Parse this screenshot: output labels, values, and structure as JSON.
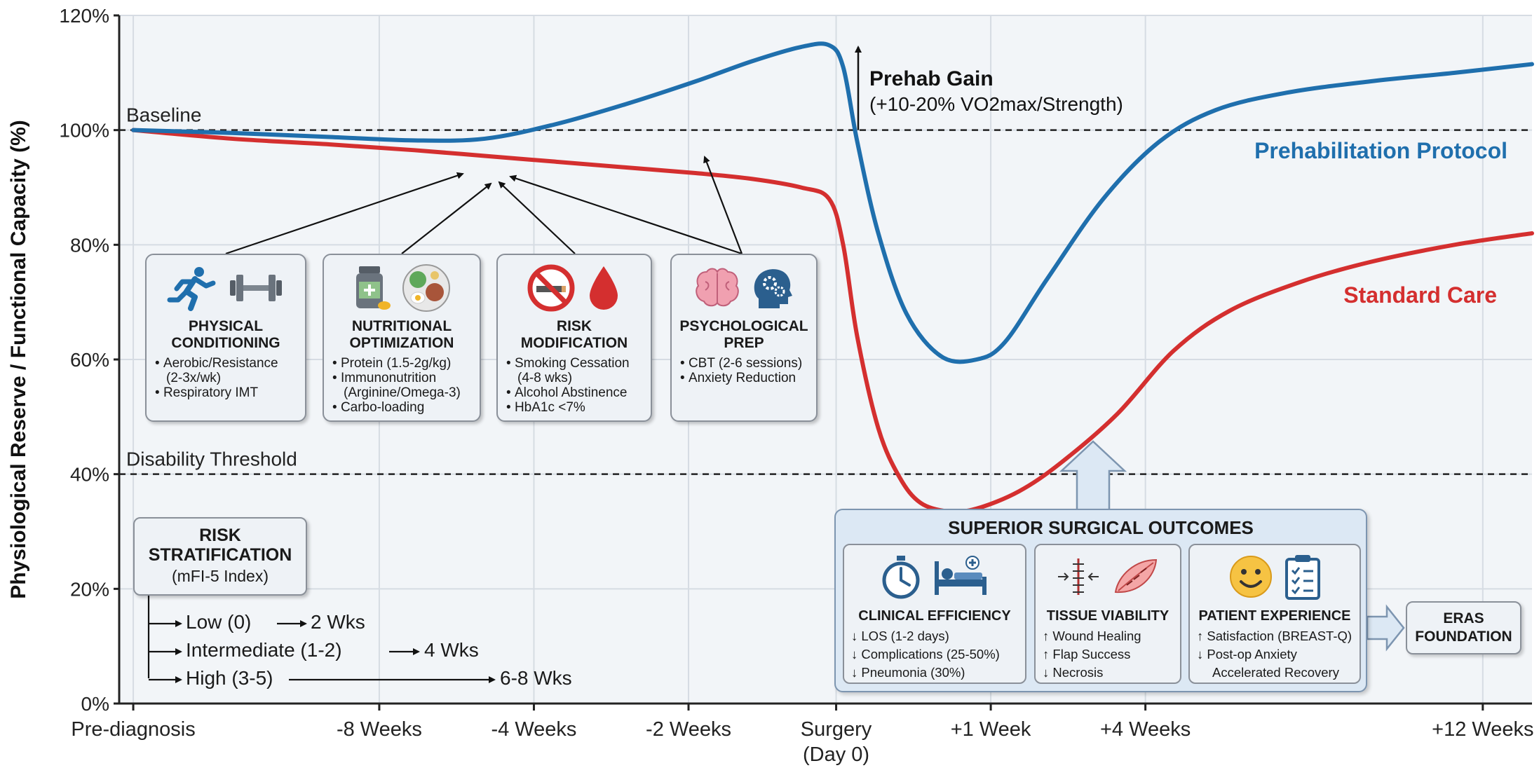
{
  "chart_data": {
    "type": "line",
    "ylabel": "Physiological Reserve / Functional Capacity (%)",
    "xlabel": "",
    "ylim": [
      0,
      120
    ],
    "yticks": [
      "0%",
      "20%",
      "40%",
      "60%",
      "80%",
      "100%",
      "120%"
    ],
    "ytick_values": [
      0,
      20,
      40,
      60,
      80,
      100,
      120
    ],
    "x_ticks": [
      {
        "label": "Pre-diagnosis",
        "pos": 0
      },
      {
        "label": "-8 Weeks",
        "pos": 1.75
      },
      {
        "label": "-4 Weeks",
        "pos": 2.85
      },
      {
        "label": "-2 Weeks",
        "pos": 3.95
      },
      {
        "label": "Surgery",
        "sub": "(Day 0)",
        "pos": 5.0
      },
      {
        "label": "+1 Week",
        "pos": 6.1
      },
      {
        "label": "+4 Weeks",
        "pos": 7.2
      },
      {
        "label": "+12 Weeks",
        "pos": 9.6
      }
    ],
    "x_range": [
      -0.1,
      9.95
    ],
    "reference_lines": [
      {
        "label": "Baseline",
        "y": 100
      },
      {
        "label": "Disability Threshold",
        "y": 40
      }
    ],
    "series": [
      {
        "name": "Prehabilitation Protocol",
        "color": "#1f6fad",
        "x": [
          0,
          0.7,
          1.4,
          2.0,
          2.5,
          3.0,
          3.5,
          4.0,
          4.4,
          4.75,
          4.95,
          5.05,
          5.15,
          5.3,
          5.5,
          5.75,
          6.0,
          6.2,
          6.5,
          6.9,
          7.3,
          7.7,
          8.2,
          8.8,
          9.4,
          9.95
        ],
        "y": [
          100,
          99.5,
          98.8,
          98.2,
          98.5,
          101,
          104.5,
          108.5,
          112,
          114.5,
          114.8,
          111,
          98,
          82,
          68,
          60.5,
          60,
          63,
          74,
          88,
          98,
          103.5,
          106.5,
          108.5,
          110,
          111.5
        ]
      },
      {
        "name": "Standard Care",
        "color": "#d42f2f",
        "x": [
          0,
          0.7,
          1.4,
          2.0,
          2.5,
          3.0,
          3.5,
          4.0,
          4.4,
          4.75,
          4.95,
          5.05,
          5.15,
          5.3,
          5.45,
          5.6,
          5.8,
          6.0,
          6.3,
          6.6,
          7.0,
          7.4,
          7.8,
          8.3,
          8.8,
          9.4,
          9.95
        ],
        "y": [
          100,
          98.5,
          97.5,
          96.5,
          95.5,
          94.5,
          93.5,
          92.5,
          91.5,
          90,
          88,
          80,
          64,
          48,
          39.5,
          35,
          33.5,
          34,
          37,
          42,
          50.5,
          61.5,
          68.5,
          73.5,
          77,
          80,
          82
        ]
      }
    ],
    "annotations": {
      "prehab_gain_title": "Prehab Gain",
      "prehab_gain_detail": "(+10-20% VO2max/Strength)"
    }
  },
  "interventions": [
    {
      "title_l1": "PHYSICAL",
      "title_l2": "CONDITIONING",
      "items": [
        "Aerobic/Resistance",
        "(2-3x/wk)",
        "Respiratory IMT"
      ]
    },
    {
      "title_l1": "NUTRITIONAL",
      "title_l2": "OPTIMIZATION",
      "items": [
        "Protein (1.5-2g/kg)",
        "Immunonutrition",
        "(Arginine/Omega-3)",
        "Carbo-loading"
      ]
    },
    {
      "title_l1": "RISK",
      "title_l2": "MODIFICATION",
      "items": [
        "Smoking Cessation",
        "(4-8 wks)",
        "Alcohol Abstinence",
        "HbA1c <7%"
      ]
    },
    {
      "title_l1": "PSYCHOLOGICAL",
      "title_l2": "PREP",
      "items": [
        "CBT (2-6 sessions)",
        "Anxiety Reduction"
      ]
    }
  ],
  "risk": {
    "title_l1": "RISK",
    "title_l2": "STRATIFICATION",
    "subtitle": "(mFI-5 Index)",
    "tiers": [
      {
        "level": "Low (0)",
        "duration": "2 Wks"
      },
      {
        "level": "Intermediate (1-2)",
        "duration": "4 Wks"
      },
      {
        "level": "High (3-5)",
        "duration": "6-8 Wks"
      }
    ]
  },
  "outcomes": {
    "title": "SUPERIOR SURGICAL OUTCOMES",
    "cards": [
      {
        "title": "CLINICAL EFFICIENCY",
        "lines": [
          "↓ LOS (1-2 days)",
          "↓ Complications (25-50%)",
          "↓ Pneumonia (30%)"
        ]
      },
      {
        "title": "TISSUE VIABILITY",
        "lines": [
          "↑ Wound Healing",
          "↑ Flap Success",
          "↓ Necrosis"
        ]
      },
      {
        "title": "PATIENT EXPERIENCE",
        "lines": [
          "↑ Satisfaction (BREAST-Q)",
          "↓ Post-op Anxiety",
          "Accelerated Recovery"
        ]
      }
    ]
  },
  "eras": {
    "line1": "ERAS",
    "line2": "FOUNDATION"
  }
}
